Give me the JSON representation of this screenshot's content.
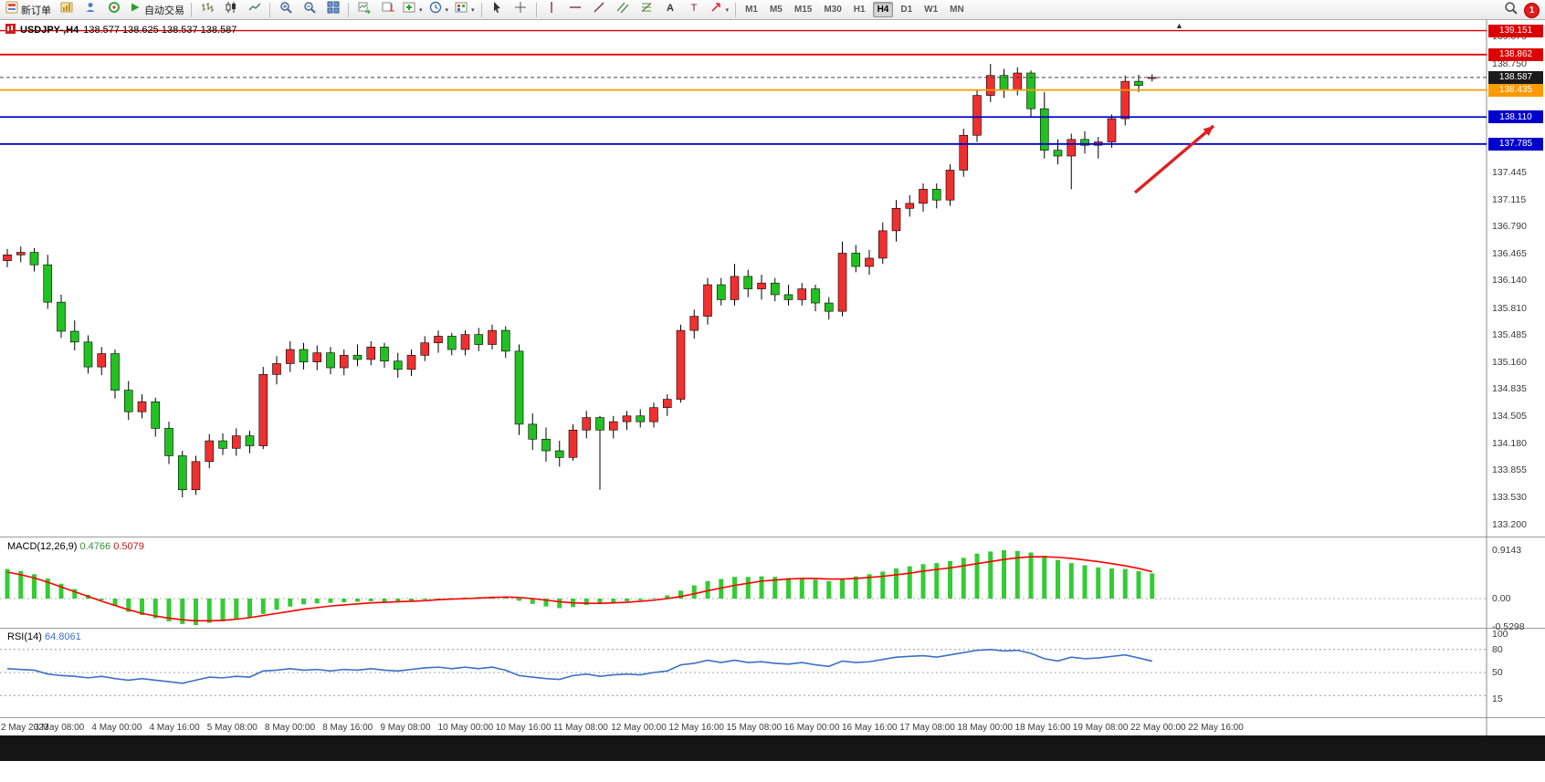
{
  "toolbar": {
    "new_order_label": "新订单",
    "autotrade_label": "自动交易",
    "notification_count": "1",
    "timeframes": [
      "M1",
      "M5",
      "M15",
      "M30",
      "H1",
      "H4",
      "D1",
      "W1",
      "MN"
    ],
    "active_timeframe": "H4",
    "items": [
      {
        "name": "new-order-button",
        "icon": "new-order",
        "label": "新订单"
      },
      {
        "name": "new-chart-button",
        "icon": "new-chart"
      },
      {
        "name": "profiles-button",
        "icon": "profiles"
      },
      {
        "name": "metaeditor-button",
        "icon": "metaeditor"
      },
      {
        "name": "autotrade-button",
        "icon": "autotrade",
        "label": "自动交易"
      },
      {
        "type": "sep"
      },
      {
        "name": "bar-chart-button",
        "icon": "bars"
      },
      {
        "name": "candlestick-chart-button",
        "icon": "candles"
      },
      {
        "name": "line-chart-button",
        "icon": "line"
      },
      {
        "type": "sep"
      },
      {
        "name": "zoom-in-button",
        "icon": "zoom-in"
      },
      {
        "name": "zoom-out-button",
        "icon": "zoom-out"
      },
      {
        "name": "tile-windows-button",
        "icon": "tile"
      },
      {
        "type": "sep"
      },
      {
        "name": "auto-scroll-button",
        "icon": "auto-scroll"
      },
      {
        "name": "chart-shift-button",
        "icon": "shift"
      },
      {
        "name": "indicators-button",
        "icon": "indicators",
        "caret": true
      },
      {
        "name": "periods-button",
        "icon": "periods",
        "caret": true
      },
      {
        "name": "templates-button",
        "icon": "templates",
        "caret": true
      },
      {
        "type": "sep"
      },
      {
        "name": "cursor-button",
        "icon": "cursor"
      },
      {
        "name": "crosshair-button",
        "icon": "crosshair"
      },
      {
        "type": "sep"
      },
      {
        "name": "vertical-line-button",
        "icon": "vline"
      },
      {
        "name": "horizontal-line-button",
        "icon": "hline"
      },
      {
        "name": "trendline-button",
        "icon": "tline"
      },
      {
        "name": "channel-button",
        "icon": "channel"
      },
      {
        "name": "fibonacci-button",
        "icon": "fibonacci"
      },
      {
        "name": "text-button",
        "icon": "text"
      },
      {
        "name": "text-label-button",
        "icon": "label"
      },
      {
        "name": "arrows-button",
        "icon": "arrows",
        "caret": true
      },
      {
        "type": "sep"
      }
    ]
  },
  "chart": {
    "title_symbol": "USDJPY-,H4",
    "title_ohlc": "138.577 138.625 138.537 138.587",
    "price_axis_labels": [
      "139.075",
      "138.750",
      "137.445",
      "137.115",
      "136.790",
      "136.465",
      "136.140",
      "135.810",
      "135.485",
      "135.160",
      "134.835",
      "134.505",
      "134.180",
      "133.855",
      "133.530",
      "133.200"
    ],
    "price_badges": [
      {
        "text": "139.151",
        "price": 139.151,
        "bg": "#dd0000"
      },
      {
        "text": "138.862",
        "price": 138.862,
        "bg": "#dd0000"
      },
      {
        "text": "138.587",
        "price": 138.587,
        "bg": "#1b1b1b"
      },
      {
        "text": "138.435",
        "price": 138.435,
        "bg": "#ff9900"
      },
      {
        "text": "138.110",
        "price": 138.11,
        "bg": "#0000cc"
      },
      {
        "text": "137.785",
        "price": 137.785,
        "bg": "#0000cc"
      }
    ],
    "horizontal_lines": [
      {
        "price": 139.151,
        "color": "#dd0000",
        "width": 1.4
      },
      {
        "price": 138.862,
        "color": "#ee0000",
        "width": 1.8
      },
      {
        "price": 138.435,
        "color": "#ff9900",
        "width": 1.8
      },
      {
        "price": 138.11,
        "color": "#0000cc",
        "width": 1.8
      },
      {
        "price": 137.785,
        "color": "#0000cc",
        "width": 1.8
      }
    ],
    "current_price": {
      "value": 138.587,
      "badge_bg": "#1b1b1b",
      "line_color": "#444444"
    },
    "arrow_annotation": {
      "from": [
        1243,
        211
      ],
      "to": [
        1329,
        138
      ],
      "color": "#e02020"
    }
  },
  "chart_data": {
    "type": "candlestick",
    "symbol": "USDJPY-",
    "timeframe": "H4",
    "last_ohlc": {
      "open": "138.577",
      "high": "138.625",
      "low": "138.537",
      "close": "138.587"
    },
    "up_color": "#ee3030",
    "down_color": "#22c122",
    "time_labels": [
      "2 May 2023",
      "3 May 08:00",
      "4 May 00:00",
      "4 May 16:00",
      "5 May 08:00",
      "8 May 00:00",
      "8 May 16:00",
      "9 May 08:00",
      "10 May 00:00",
      "10 May 16:00",
      "11 May 08:00",
      "12 May 00:00",
      "12 May 16:00",
      "15 May 08:00",
      "16 May 00:00",
      "16 May 16:00",
      "17 May 08:00",
      "18 May 00:00",
      "18 May 16:00",
      "19 May 08:00",
      "22 May 00:00",
      "22 May 16:00"
    ],
    "ohlc": [
      [
        136.38,
        136.52,
        136.3,
        136.45
      ],
      [
        136.45,
        136.55,
        136.36,
        136.48
      ],
      [
        136.48,
        136.53,
        136.25,
        136.33
      ],
      [
        136.33,
        136.45,
        135.8,
        135.88
      ],
      [
        135.88,
        135.97,
        135.45,
        135.53
      ],
      [
        135.53,
        135.66,
        135.3,
        135.4
      ],
      [
        135.4,
        135.48,
        135.02,
        135.1
      ],
      [
        135.1,
        135.34,
        135.0,
        135.26
      ],
      [
        135.26,
        135.31,
        134.72,
        134.82
      ],
      [
        134.82,
        134.93,
        134.46,
        134.56
      ],
      [
        134.56,
        134.77,
        134.48,
        134.68
      ],
      [
        134.68,
        134.73,
        134.26,
        134.36
      ],
      [
        134.36,
        134.44,
        133.93,
        134.03
      ],
      [
        134.03,
        134.09,
        133.53,
        133.62
      ],
      [
        133.62,
        134.03,
        133.56,
        133.96
      ],
      [
        133.96,
        134.29,
        133.88,
        134.21
      ],
      [
        134.21,
        134.3,
        134.04,
        134.12
      ],
      [
        134.12,
        134.36,
        134.03,
        134.27
      ],
      [
        134.27,
        134.33,
        134.06,
        134.15
      ],
      [
        134.15,
        135.1,
        134.11,
        135.01
      ],
      [
        135.01,
        135.23,
        134.89,
        135.14
      ],
      [
        135.14,
        135.41,
        135.04,
        135.31
      ],
      [
        135.31,
        135.39,
        135.07,
        135.16
      ],
      [
        135.16,
        135.36,
        135.06,
        135.27
      ],
      [
        135.27,
        135.34,
        135.01,
        135.09
      ],
      [
        135.09,
        135.31,
        135.0,
        135.24
      ],
      [
        135.24,
        135.37,
        135.11,
        135.19
      ],
      [
        135.19,
        135.41,
        135.12,
        135.34
      ],
      [
        135.34,
        135.39,
        135.09,
        135.17
      ],
      [
        135.17,
        135.27,
        134.97,
        135.07
      ],
      [
        135.07,
        135.31,
        134.99,
        135.24
      ],
      [
        135.24,
        135.47,
        135.17,
        135.39
      ],
      [
        135.39,
        135.54,
        135.27,
        135.47
      ],
      [
        135.47,
        135.51,
        135.24,
        135.31
      ],
      [
        135.31,
        135.54,
        135.24,
        135.49
      ],
      [
        135.49,
        135.57,
        135.29,
        135.37
      ],
      [
        135.37,
        135.61,
        135.31,
        135.54
      ],
      [
        135.54,
        135.59,
        135.21,
        135.29
      ],
      [
        135.29,
        135.37,
        134.28,
        134.41
      ],
      [
        134.41,
        134.54,
        134.1,
        134.23
      ],
      [
        134.23,
        134.37,
        133.96,
        134.09
      ],
      [
        134.09,
        134.21,
        133.9,
        134.01
      ],
      [
        134.01,
        134.41,
        133.97,
        134.34
      ],
      [
        134.34,
        134.57,
        134.24,
        134.49
      ],
      [
        134.49,
        134.51,
        133.62,
        134.34
      ],
      [
        134.34,
        134.51,
        134.24,
        134.44
      ],
      [
        134.44,
        134.57,
        134.34,
        134.51
      ],
      [
        134.51,
        134.59,
        134.37,
        134.44
      ],
      [
        134.44,
        134.67,
        134.37,
        134.61
      ],
      [
        134.61,
        134.77,
        134.51,
        134.71
      ],
      [
        134.71,
        135.61,
        134.67,
        135.54
      ],
      [
        135.54,
        135.79,
        135.44,
        135.71
      ],
      [
        135.71,
        136.17,
        135.61,
        136.09
      ],
      [
        136.09,
        136.17,
        135.84,
        135.91
      ],
      [
        135.91,
        136.34,
        135.84,
        136.19
      ],
      [
        136.19,
        136.27,
        135.94,
        136.04
      ],
      [
        136.04,
        136.21,
        135.91,
        136.11
      ],
      [
        136.11,
        136.17,
        135.89,
        135.97
      ],
      [
        135.97,
        136.09,
        135.84,
        135.91
      ],
      [
        135.91,
        136.11,
        135.84,
        136.04
      ],
      [
        136.04,
        136.09,
        135.77,
        135.87
      ],
      [
        135.87,
        135.94,
        135.67,
        135.77
      ],
      [
        135.77,
        136.61,
        135.71,
        136.47
      ],
      [
        136.47,
        136.57,
        136.24,
        136.31
      ],
      [
        136.31,
        136.51,
        136.21,
        136.41
      ],
      [
        136.41,
        136.84,
        136.34,
        136.74
      ],
      [
        136.74,
        137.11,
        136.61,
        137.01
      ],
      [
        137.01,
        137.17,
        136.91,
        137.07
      ],
      [
        137.07,
        137.31,
        136.97,
        137.24
      ],
      [
        137.24,
        137.31,
        137.01,
        137.11
      ],
      [
        137.11,
        137.54,
        137.04,
        137.47
      ],
      [
        137.47,
        137.97,
        137.39,
        137.89
      ],
      [
        137.89,
        138.44,
        137.81,
        138.37
      ],
      [
        138.37,
        138.75,
        138.29,
        138.61
      ],
      [
        138.61,
        138.69,
        138.34,
        138.44
      ],
      [
        138.44,
        138.71,
        138.37,
        138.64
      ],
      [
        138.64,
        138.67,
        138.11,
        138.21
      ],
      [
        138.21,
        138.41,
        137.61,
        137.71
      ],
      [
        137.71,
        137.84,
        137.54,
        137.64
      ],
      [
        137.64,
        137.91,
        137.24,
        137.84
      ],
      [
        137.84,
        137.94,
        137.67,
        137.77
      ],
      [
        137.77,
        137.87,
        137.61,
        137.81
      ],
      [
        137.81,
        138.14,
        137.74,
        138.09
      ],
      [
        138.09,
        138.61,
        138.01,
        138.54
      ],
      [
        138.54,
        138.62,
        138.41,
        138.49
      ],
      [
        138.577,
        138.625,
        138.537,
        138.587
      ]
    ],
    "indicators": {
      "macd": {
        "label": "MACD(12,26,9)",
        "main_value": "0.4766",
        "signal_value": "0.5079",
        "histogram_color": "#33cc33",
        "signal_color": "#ff0000",
        "scale_labels": [
          {
            "text": "0.9143",
            "v": 0.9143
          },
          {
            "text": "0.00",
            "v": 0
          },
          {
            "text": "-0.5298",
            "v": -0.5298
          }
        ],
        "histogram": [
          0.56,
          0.52,
          0.46,
          0.38,
          0.28,
          0.18,
          0.07,
          -0.03,
          -0.14,
          -0.25,
          -0.31,
          -0.37,
          -0.43,
          -0.48,
          -0.5,
          -0.46,
          -0.43,
          -0.4,
          -0.37,
          -0.29,
          -0.21,
          -0.15,
          -0.11,
          -0.09,
          -0.08,
          -0.07,
          -0.06,
          -0.05,
          -0.06,
          -0.07,
          -0.05,
          -0.02,
          0.0,
          0.01,
          0.02,
          0.03,
          0.04,
          0.02,
          -0.04,
          -0.1,
          -0.15,
          -0.18,
          -0.16,
          -0.12,
          -0.1,
          -0.08,
          -0.05,
          -0.03,
          0.01,
          0.06,
          0.15,
          0.25,
          0.33,
          0.37,
          0.41,
          0.41,
          0.42,
          0.41,
          0.39,
          0.38,
          0.36,
          0.33,
          0.38,
          0.42,
          0.46,
          0.51,
          0.57,
          0.61,
          0.65,
          0.67,
          0.71,
          0.77,
          0.85,
          0.89,
          0.9143,
          0.9,
          0.87,
          0.81,
          0.73,
          0.67,
          0.63,
          0.59,
          0.57,
          0.56,
          0.52,
          0.4766
        ],
        "signal": [
          0.5,
          0.45,
          0.39,
          0.31,
          0.22,
          0.13,
          0.04,
          -0.05,
          -0.13,
          -0.21,
          -0.28,
          -0.33,
          -0.37,
          -0.4,
          -0.42,
          -0.42,
          -0.41,
          -0.39,
          -0.36,
          -0.32,
          -0.28,
          -0.24,
          -0.2,
          -0.17,
          -0.14,
          -0.12,
          -0.1,
          -0.08,
          -0.07,
          -0.06,
          -0.05,
          -0.04,
          -0.02,
          -0.01,
          0.0,
          0.01,
          0.02,
          0.03,
          0.02,
          0.0,
          -0.03,
          -0.06,
          -0.08,
          -0.09,
          -0.09,
          -0.08,
          -0.07,
          -0.05,
          -0.03,
          0.0,
          0.04,
          0.09,
          0.15,
          0.2,
          0.25,
          0.29,
          0.33,
          0.35,
          0.37,
          0.38,
          0.38,
          0.37,
          0.37,
          0.38,
          0.4,
          0.42,
          0.45,
          0.48,
          0.52,
          0.55,
          0.58,
          0.62,
          0.66,
          0.7,
          0.74,
          0.77,
          0.79,
          0.79,
          0.78,
          0.76,
          0.73,
          0.7,
          0.66,
          0.62,
          0.57,
          0.5079
        ]
      },
      "rsi": {
        "label": "RSI(14)",
        "value": "64.8061",
        "color": "#3b6fc9",
        "levels": [
          80,
          50,
          20
        ],
        "scale_labels": [
          {
            "text": "100",
            "v": 100
          },
          {
            "text": "80",
            "v": 80
          },
          {
            "text": "50",
            "v": 50
          },
          {
            "text": "15",
            "v": 15
          }
        ],
        "values": [
          55,
          54,
          53,
          48,
          46,
          45,
          43,
          45,
          42,
          40,
          42,
          40,
          38,
          36,
          40,
          44,
          43,
          45,
          44,
          52,
          53,
          55,
          53,
          54,
          52,
          54,
          53,
          55,
          53,
          52,
          54,
          56,
          57,
          55,
          57,
          55,
          57,
          53,
          46,
          44,
          42,
          41,
          46,
          48,
          45,
          47,
          48,
          47,
          50,
          52,
          60,
          62,
          66,
          63,
          66,
          63,
          64,
          62,
          61,
          63,
          60,
          58,
          65,
          63,
          64,
          67,
          70,
          71,
          72,
          70,
          73,
          76,
          79,
          80,
          78,
          79,
          75,
          68,
          65,
          70,
          68,
          69,
          71,
          73,
          69,
          64.8061
        ]
      }
    }
  }
}
